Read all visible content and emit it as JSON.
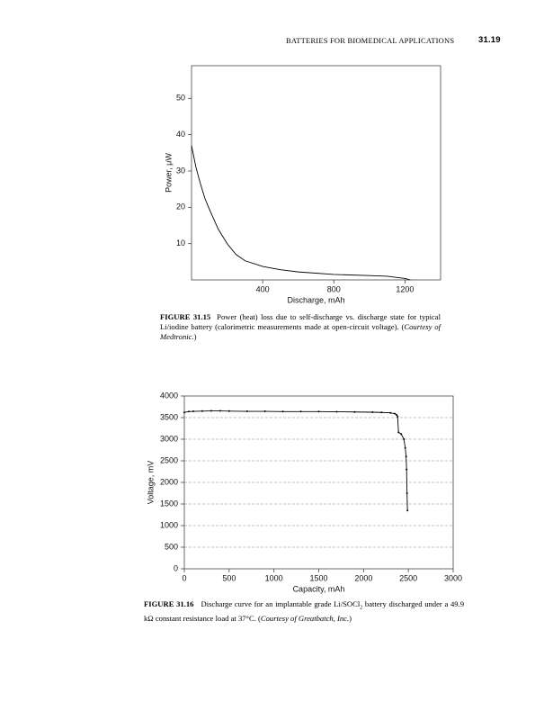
{
  "header": {
    "running_title": "BATTERIES FOR BIOMEDICAL APPLICATIONS",
    "page_number": "31.19"
  },
  "chart_data": [
    {
      "type": "line",
      "x_label": "Discharge, mAh",
      "y_label": "Power, μW",
      "color": "#000000",
      "grid": false,
      "marker": false,
      "x": [
        0,
        25,
        50,
        75,
        100,
        150,
        200,
        250,
        300,
        400,
        500,
        600,
        800,
        1000,
        1100,
        1200,
        1230
      ],
      "values": [
        37,
        31,
        26.5,
        22.5,
        19.5,
        14,
        10,
        7,
        5.3,
        3.7,
        2.8,
        2.2,
        1.5,
        1.2,
        1.0,
        0.4,
        0
      ],
      "xlim": [
        0,
        1400
      ],
      "xticks": [
        400,
        800,
        1200
      ],
      "ylim": [
        0,
        59
      ],
      "yticks": [
        10,
        20,
        30,
        40,
        50
      ]
    },
    {
      "type": "line",
      "x_label": "Capacity, mAh",
      "y_label": "Voltage, mV",
      "color": "#000000",
      "grid": true,
      "marker": true,
      "x": [
        0,
        50,
        100,
        200,
        300,
        400,
        500,
        700,
        900,
        1100,
        1300,
        1500,
        1700,
        1900,
        2100,
        2200,
        2300,
        2350,
        2370,
        2380,
        2390,
        2420,
        2450,
        2465,
        2475,
        2480,
        2485,
        2490
      ],
      "values": [
        3620,
        3640,
        3645,
        3650,
        3655,
        3655,
        3650,
        3645,
        3645,
        3640,
        3640,
        3640,
        3635,
        3630,
        3625,
        3620,
        3610,
        3590,
        3560,
        3520,
        3160,
        3120,
        3000,
        2800,
        2600,
        2300,
        1750,
        1350
      ],
      "xlim": [
        0,
        3000
      ],
      "xticks": [
        0,
        500,
        1000,
        1500,
        2000,
        2500,
        3000
      ],
      "ylim": [
        0,
        4000
      ],
      "yticks": [
        0,
        500,
        1000,
        1500,
        2000,
        2500,
        3000,
        3500,
        4000
      ]
    }
  ],
  "captions": [
    {
      "label": "FIGURE 31.15",
      "text": "Power (heat) loss due to self-discharge vs. discharge state for typical Li/iodine battery (calorimetric measurements made at open-circuit voltage). (",
      "credit": "Courtesy of Medtronic.",
      "end": ")"
    },
    {
      "label": "FIGURE 31.16",
      "text": "Discharge curve for an implantable grade Li/SOCl",
      "subscript": "2",
      "text2": " battery discharged under a 49.9 kΩ constant resistance load at 37°C. (",
      "credit": "Courtesy of Greatbatch, Inc.",
      "end": ")"
    }
  ]
}
